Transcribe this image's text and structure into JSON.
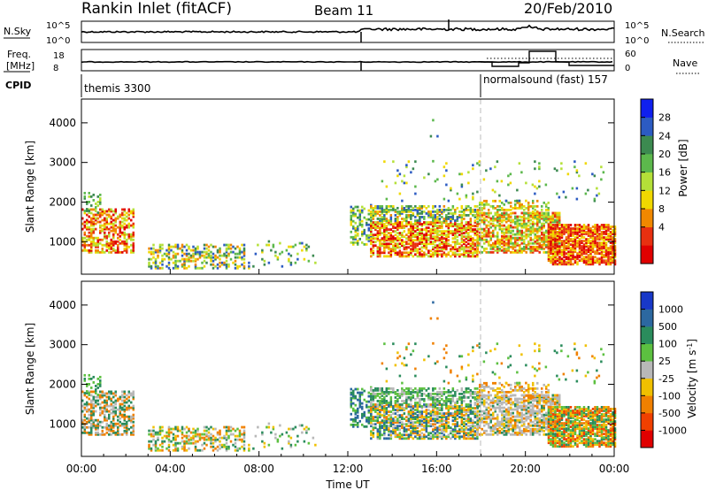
{
  "header": {
    "station": "Rankin Inlet (fitACF)",
    "beam": "Beam 11",
    "date": "20/Feb/2010"
  },
  "noise_panel": {
    "left_label": "N.Sky",
    "left_ticks": [
      "10^5",
      "10^0"
    ],
    "right_ticks": [
      "10^5",
      "10^0"
    ],
    "right_label": "N.Search"
  },
  "freq_panel": {
    "left_label_1": "Freq.",
    "left_label_2": "[MHz]",
    "left_ticks": [
      "18",
      "8"
    ],
    "right_ticks": [
      "60",
      "0"
    ],
    "right_label": "Nave"
  },
  "cpid_panel": {
    "label": "CPID",
    "segments": [
      {
        "text": "themis 3300",
        "start_hour": 0
      },
      {
        "text": "normalsound (fast) 157",
        "start_hour": 18
      }
    ]
  },
  "x_axis": {
    "label": "Time UT",
    "ticks": [
      "00:00",
      "04:00",
      "08:00",
      "12:00",
      "16:00",
      "20:00",
      "00:00"
    ]
  },
  "chart_data": [
    {
      "type": "heatmap",
      "name": "power",
      "ylabel": "Slant Range [km]",
      "yticks": [
        "1000",
        "2000",
        "3000",
        "4000"
      ],
      "ylim": [
        180,
        4600
      ],
      "xlim_hours": [
        0,
        24
      ],
      "colorbar_label": "Power [dB]",
      "colorbar_ticks": [
        "28",
        "24",
        "20",
        "16",
        "12",
        "8",
        "4"
      ],
      "colorbar_colors": [
        "#1020ee",
        "#2c5bc2",
        "#3c8a50",
        "#5cb84c",
        "#b4e038",
        "#f0d800",
        "#f08800",
        "#e83010",
        "#e00000"
      ]
    },
    {
      "type": "heatmap",
      "name": "velocity",
      "ylabel": "Slant Range [km]",
      "yticks": [
        "1000",
        "2000",
        "3000",
        "4000"
      ],
      "ylim": [
        180,
        4600
      ],
      "xlim_hours": [
        0,
        24
      ],
      "colorbar_label": "Velocity [m s^-1]",
      "colorbar_ticks": [
        "1000",
        "500",
        "100",
        "25",
        "-25",
        "-100",
        "-500",
        "-1000"
      ],
      "colorbar_colors": [
        "#1838c8",
        "#2c68a0",
        "#2a8c5c",
        "#5cc040",
        "#b8b8b8",
        "#f0c000",
        "#f08000",
        "#f04000",
        "#e00000"
      ]
    }
  ]
}
